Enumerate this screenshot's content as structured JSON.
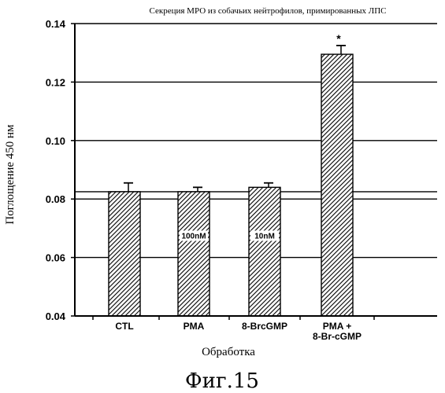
{
  "chart_data": {
    "type": "bar",
    "title": "Секреция МРО из собачьих нейтрофилов, примированных ЛПС",
    "xlabel": "Обработка",
    "ylabel": "Поглощение 450 нм",
    "ylim": [
      0.04,
      0.14
    ],
    "yticks": [
      "0.04",
      "0.06",
      "0.08",
      "0.10",
      "0.12",
      "0.14"
    ],
    "grid": true,
    "categories": [
      {
        "line1": "CTL",
        "line2": ""
      },
      {
        "line1": "PMA",
        "line2": ""
      },
      {
        "line1": "8-BrcGMP",
        "line2": ""
      },
      {
        "line1": "PMA +",
        "line2": "8-Br-cGMP"
      }
    ],
    "values": [
      0.0825,
      0.0825,
      0.084,
      0.1295
    ],
    "errors": [
      0.003,
      0.0015,
      0.0015,
      0.003
    ],
    "bar_labels": [
      "",
      "100nM",
      "10nM",
      ""
    ],
    "significance": [
      "",
      "",
      "",
      "*"
    ],
    "reference_lines": [
      0.0825
    ]
  },
  "caption": "Фиг.15",
  "colors": {
    "ink": "#000000",
    "background": "#ffffff"
  }
}
